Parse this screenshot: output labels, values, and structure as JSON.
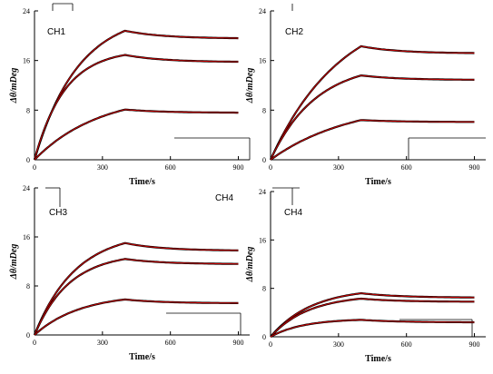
{
  "colors": {
    "measured": "#000000",
    "fitted": "#cc0000",
    "axis": "#000000"
  },
  "floating_label": "CH4",
  "chart_data": [
    {
      "type": "line",
      "panel_label": "CH1",
      "xlabel": "Time/s",
      "ylabel": "Δθ/mDeg",
      "xlim": [
        0,
        950
      ],
      "ylim": [
        0,
        24
      ],
      "xticks": [
        0,
        300,
        600,
        900
      ],
      "yticks": [
        0,
        8,
        16,
        24
      ],
      "association_end": 400,
      "x_end": 900,
      "series": [
        {
          "plateau": 20.8,
          "end": 19.6,
          "k": 0.0052
        },
        {
          "plateau": 16.9,
          "end": 15.8,
          "k": 0.0075
        },
        {
          "plateau": 8.1,
          "end": 7.6,
          "k": 0.0035
        }
      ]
    },
    {
      "type": "line",
      "panel_label": "CH2",
      "xlabel": "Time/s",
      "ylabel": "Δθ/mDeg",
      "xlim": [
        0,
        950
      ],
      "ylim": [
        0,
        24
      ],
      "xticks": [
        0,
        300,
        600,
        900
      ],
      "yticks": [
        0,
        8,
        16,
        24
      ],
      "association_end": 400,
      "x_end": 900,
      "series": [
        {
          "plateau": 18.3,
          "end": 17.2,
          "k": 0.0032
        },
        {
          "plateau": 13.6,
          "end": 12.9,
          "k": 0.005
        },
        {
          "plateau": 6.4,
          "end": 6.1,
          "k": 0.0028
        }
      ]
    },
    {
      "type": "line",
      "panel_label": "CH3",
      "xlabel": "Time/s",
      "ylabel": "Δθ/mDeg",
      "xlim": [
        0,
        950
      ],
      "ylim": [
        0,
        24
      ],
      "xticks": [
        0,
        300,
        600,
        900
      ],
      "yticks": [
        0,
        8,
        16,
        24
      ],
      "association_end": 400,
      "x_end": 900,
      "series": [
        {
          "plateau": 15.0,
          "end": 13.8,
          "k": 0.0055
        },
        {
          "plateau": 12.4,
          "end": 11.6,
          "k": 0.0065
        },
        {
          "plateau": 5.8,
          "end": 5.2,
          "k": 0.005
        }
      ]
    },
    {
      "type": "line",
      "panel_label": "CH4",
      "xlabel": "Time/s",
      "ylabel": "Δθ/mDeg",
      "xlim": [
        0,
        950
      ],
      "ylim": [
        0,
        24
      ],
      "xticks": [
        0,
        300,
        600,
        900
      ],
      "yticks": [
        0,
        8,
        16,
        24
      ],
      "association_end": 400,
      "x_end": 900,
      "series": [
        {
          "plateau": 7.2,
          "end": 6.5,
          "k": 0.0055
        },
        {
          "plateau": 6.3,
          "end": 5.8,
          "k": 0.006
        },
        {
          "plateau": 2.8,
          "end": 2.4,
          "k": 0.007
        }
      ]
    }
  ]
}
